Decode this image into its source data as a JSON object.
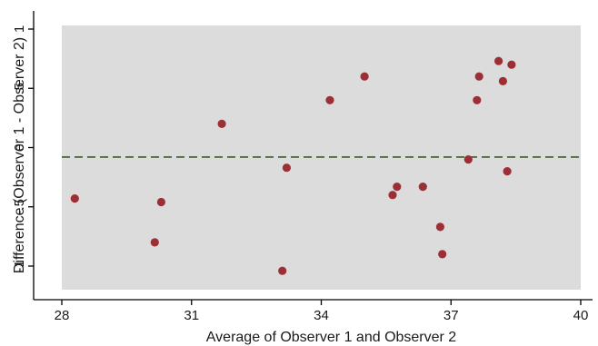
{
  "chart_data": {
    "type": "scatter",
    "xlabel": "Average of Observer 1 and Observer 2",
    "ylabel": "Difference (Observer 1 - Observer 2)",
    "xlim": [
      28,
      40
    ],
    "ylim": [
      -1.2,
      1.02
    ],
    "x_ticks": [
      {
        "value": 28,
        "label": "28"
      },
      {
        "value": 31,
        "label": "31"
      },
      {
        "value": 34,
        "label": "34"
      },
      {
        "value": 37,
        "label": "37"
      },
      {
        "value": 40,
        "label": "40"
      }
    ],
    "y_ticks": [
      {
        "value": 1,
        "label": "1"
      },
      {
        "value": 0.5,
        "label": ".5"
      },
      {
        "value": 0,
        "label": "0"
      },
      {
        "value": -0.5,
        "label": "-.5"
      },
      {
        "value": -1,
        "label": "-1"
      }
    ],
    "reference_line": {
      "y": -0.08,
      "style": "dashed",
      "color": "#3f5a2a"
    },
    "points": [
      {
        "x": 28.3,
        "y": -0.43
      },
      {
        "x": 30.15,
        "y": -0.8
      },
      {
        "x": 30.3,
        "y": -0.46
      },
      {
        "x": 31.7,
        "y": 0.2
      },
      {
        "x": 33.1,
        "y": -1.04
      },
      {
        "x": 33.2,
        "y": -0.17
      },
      {
        "x": 34.2,
        "y": 0.4
      },
      {
        "x": 35.0,
        "y": 0.6
      },
      {
        "x": 35.65,
        "y": -0.4
      },
      {
        "x": 35.75,
        "y": -0.33
      },
      {
        "x": 36.35,
        "y": -0.33
      },
      {
        "x": 36.75,
        "y": -0.67
      },
      {
        "x": 36.8,
        "y": -0.9
      },
      {
        "x": 37.4,
        "y": -0.1
      },
      {
        "x": 37.6,
        "y": 0.4
      },
      {
        "x": 37.65,
        "y": 0.6
      },
      {
        "x": 38.1,
        "y": 0.73
      },
      {
        "x": 38.2,
        "y": 0.56
      },
      {
        "x": 38.3,
        "y": -0.2
      },
      {
        "x": 38.4,
        "y": 0.7
      }
    ],
    "grid": false,
    "colors": {
      "plot_background": "#dcdcdc",
      "point": "#9b2f35",
      "axis": "#000000"
    }
  }
}
